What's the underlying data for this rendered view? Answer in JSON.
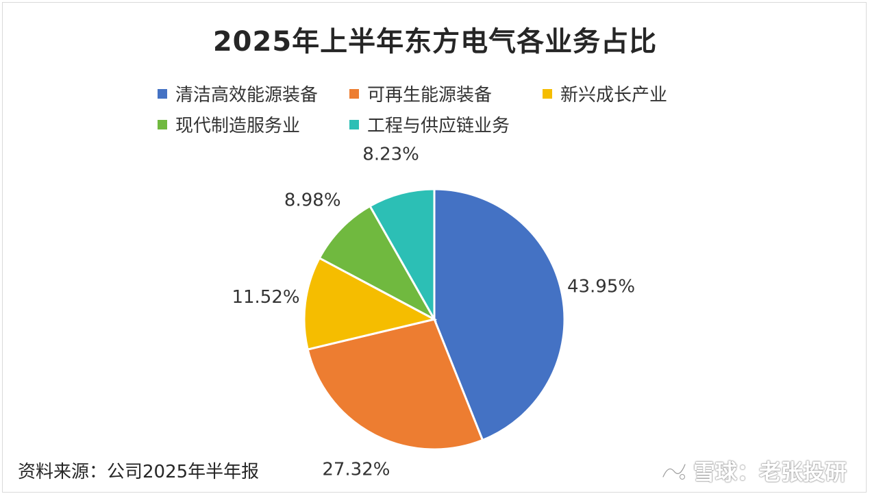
{
  "chart_data": {
    "type": "pie",
    "title": "2025年上半年东方电气各业务占比",
    "categories": [
      "清洁高效能源装备",
      "可再生能源装备",
      "新兴成长产业",
      "现代制造服务业",
      "工程与供应链业务"
    ],
    "values": [
      43.95,
      27.32,
      11.52,
      8.98,
      8.23
    ],
    "labels": [
      "43.95%",
      "27.32%",
      "11.52%",
      "8.98%",
      "8.23%"
    ],
    "colors": [
      "#4472C4",
      "#ED7D31",
      "#F5BD00",
      "#70B93F",
      "#2CBFB5"
    ],
    "legend_position": "top"
  },
  "footer": {
    "source": "资料来源：公司2025年半年报",
    "watermark": "雪球：老张投研"
  }
}
